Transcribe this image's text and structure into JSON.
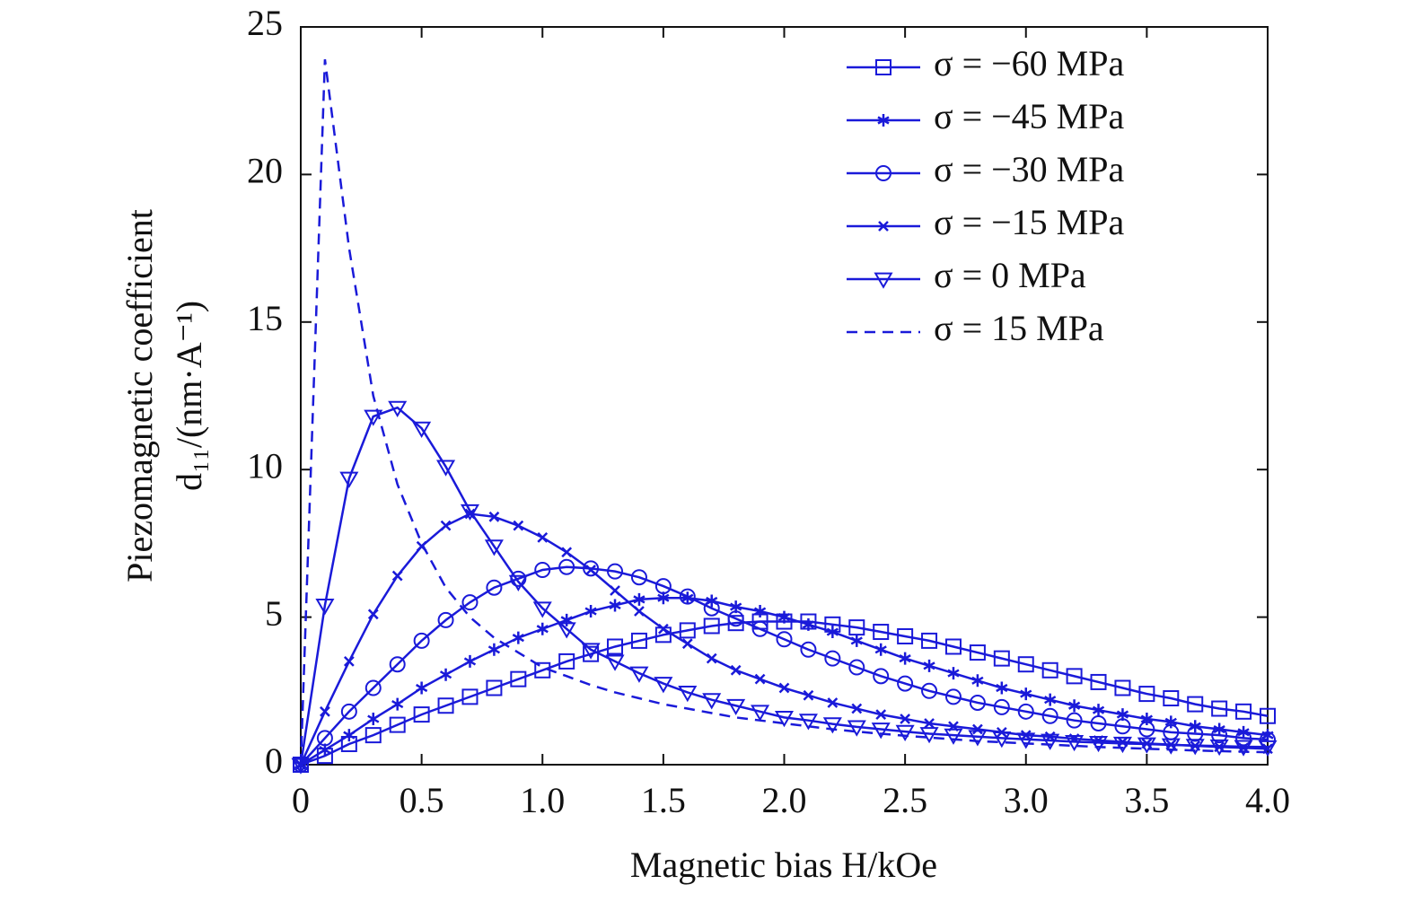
{
  "chart_data": {
    "type": "line",
    "x_label": "Magnetic bias H/kOe",
    "y_label": [
      "Piezomagnetic coefficient",
      "d₁₁/(nm·A⁻¹)"
    ],
    "x": [
      0,
      0.1,
      0.2,
      0.3,
      0.4,
      0.5,
      0.6,
      0.7,
      0.8,
      0.9,
      1.0,
      1.1,
      1.2,
      1.3,
      1.4,
      1.5,
      1.6,
      1.7,
      1.8,
      1.9,
      2.0,
      2.1,
      2.2,
      2.3,
      2.4,
      2.5,
      2.6,
      2.7,
      2.8,
      2.9,
      3.0,
      3.1,
      3.2,
      3.3,
      3.4,
      3.5,
      3.6,
      3.7,
      3.8,
      3.9,
      4.0
    ],
    "series": [
      {
        "name": "σ = −60 MPa",
        "color": "#1a1ad9",
        "marker": "square",
        "dashed": false,
        "values": [
          0,
          0.3,
          0.7,
          1.0,
          1.35,
          1.7,
          2.0,
          2.3,
          2.6,
          2.9,
          3.2,
          3.5,
          3.75,
          4.0,
          4.2,
          4.4,
          4.55,
          4.7,
          4.8,
          4.85,
          4.85,
          4.85,
          4.75,
          4.65,
          4.5,
          4.35,
          4.2,
          4.0,
          3.8,
          3.6,
          3.4,
          3.2,
          3.0,
          2.8,
          2.6,
          2.4,
          2.25,
          2.05,
          1.9,
          1.8,
          1.65
        ]
      },
      {
        "name": "σ = −45 MPa",
        "color": "#1a1ad9",
        "marker": "asterisk",
        "dashed": false,
        "values": [
          0,
          0.5,
          1.0,
          1.55,
          2.05,
          2.6,
          3.05,
          3.5,
          3.9,
          4.3,
          4.6,
          4.9,
          5.2,
          5.4,
          5.6,
          5.65,
          5.65,
          5.55,
          5.35,
          5.2,
          5.0,
          4.75,
          4.5,
          4.2,
          3.9,
          3.6,
          3.35,
          3.1,
          2.85,
          2.6,
          2.4,
          2.2,
          2.0,
          1.85,
          1.7,
          1.55,
          1.45,
          1.3,
          1.2,
          1.1,
          1.0
        ]
      },
      {
        "name": "σ = −30 MPa",
        "color": "#1a1ad9",
        "marker": "circle",
        "dashed": false,
        "values": [
          0,
          0.9,
          1.8,
          2.6,
          3.4,
          4.2,
          4.9,
          5.5,
          6.0,
          6.3,
          6.6,
          6.7,
          6.65,
          6.55,
          6.35,
          6.05,
          5.7,
          5.3,
          4.95,
          4.6,
          4.25,
          3.9,
          3.6,
          3.3,
          3.0,
          2.75,
          2.5,
          2.3,
          2.1,
          1.95,
          1.8,
          1.65,
          1.5,
          1.4,
          1.3,
          1.2,
          1.1,
          1.05,
          1.0,
          0.9,
          0.85
        ]
      },
      {
        "name": "σ = −15 MPa",
        "color": "#1a1ad9",
        "marker": "x",
        "dashed": false,
        "values": [
          0,
          1.8,
          3.5,
          5.1,
          6.4,
          7.4,
          8.1,
          8.5,
          8.4,
          8.1,
          7.7,
          7.2,
          6.6,
          5.9,
          5.2,
          4.6,
          4.1,
          3.6,
          3.2,
          2.9,
          2.6,
          2.35,
          2.1,
          1.9,
          1.7,
          1.55,
          1.4,
          1.3,
          1.2,
          1.1,
          1.0,
          0.95,
          0.88,
          0.82,
          0.77,
          0.72,
          0.68,
          0.64,
          0.6,
          0.57,
          0.54
        ]
      },
      {
        "name": "σ = 0 MPa",
        "color": "#1a1ad9",
        "marker": "triangle-down",
        "dashed": false,
        "values": [
          0,
          5.4,
          9.7,
          11.8,
          12.1,
          11.4,
          10.1,
          8.6,
          7.4,
          6.2,
          5.3,
          4.6,
          3.9,
          3.5,
          3.1,
          2.75,
          2.45,
          2.2,
          2.0,
          1.8,
          1.6,
          1.5,
          1.38,
          1.28,
          1.2,
          1.12,
          1.05,
          1.0,
          0.95,
          0.9,
          0.86,
          0.82,
          0.78,
          0.75,
          0.72,
          0.7,
          0.67,
          0.65,
          0.63,
          0.61,
          0.6
        ]
      },
      {
        "name": "σ = 15 MPa",
        "color": "#1a1ad9",
        "marker": null,
        "dashed": true,
        "values": [
          0,
          23.9,
          17.5,
          12.5,
          9.5,
          7.5,
          6.0,
          5.0,
          4.3,
          3.8,
          3.3,
          3.0,
          2.7,
          2.45,
          2.25,
          2.05,
          1.9,
          1.75,
          1.6,
          1.5,
          1.4,
          1.3,
          1.2,
          1.12,
          1.05,
          0.98,
          0.92,
          0.86,
          0.8,
          0.76,
          0.72,
          0.68,
          0.64,
          0.6,
          0.57,
          0.54,
          0.51,
          0.48,
          0.46,
          0.44,
          0.42
        ]
      }
    ],
    "xlim": [
      0,
      4
    ],
    "xticks": [
      0,
      0.5,
      {
        "value": 1,
        "label": "1.0"
      },
      1.5,
      {
        "value": 2,
        "label": "2.0"
      },
      2.5,
      {
        "value": 3,
        "label": "3.0"
      },
      3.5,
      {
        "value": 4,
        "label": "4.0"
      }
    ],
    "ylim": [
      0,
      25
    ],
    "yticks": [
      0,
      5,
      10,
      15,
      20,
      25
    ],
    "legend": "upper right"
  }
}
